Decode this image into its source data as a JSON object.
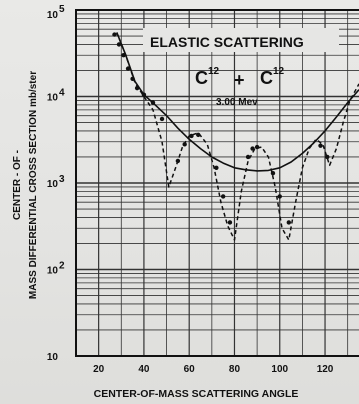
{
  "chart_data": {
    "type": "line",
    "title_lines": [
      "ELASTIC SCATTERING",
      "C",
      "12",
      "+",
      "C",
      "12",
      "3.00 Mev"
    ],
    "title": {
      "line1": "ELASTIC SCATTERING",
      "reaction_left": "C",
      "reaction_left_sup": "12",
      "reaction_plus": "+",
      "reaction_right": "C",
      "reaction_right_sup": "12",
      "energy": "3.00 Mev"
    },
    "xlabel": "CENTER-OF-MASS SCATTERING ANGLE",
    "ylabel_line1": "CENTER - OF -",
    "ylabel_line2": "MASS DIFFERENTIAL CROSS SECTION mb/ster",
    "x_ticks": [
      "20",
      "40",
      "60",
      "80",
      "100",
      "120"
    ],
    "y_ticks": [
      "10",
      "10",
      "10",
      "10",
      "10"
    ],
    "y_tick_exponents": [
      "5",
      "4",
      "3",
      "2",
      ""
    ],
    "y_scale": "log",
    "xlim": [
      10,
      135
    ],
    "ylim": [
      10,
      100000
    ],
    "grid": true,
    "series": [
      {
        "style": "solid",
        "x": [
          28,
          32,
          36,
          40,
          45,
          50,
          55,
          60,
          65,
          70,
          75,
          80,
          85,
          90,
          95,
          100,
          105,
          110,
          115,
          120,
          125,
          130,
          135
        ],
        "y": [
          55000,
          30000,
          15000,
          10500,
          8000,
          6000,
          4300,
          3200,
          2500,
          2000,
          1700,
          1500,
          1420,
          1380,
          1400,
          1500,
          1750,
          2200,
          2900,
          4000,
          5800,
          8500,
          12000
        ]
      },
      {
        "style": "dashed",
        "x": [
          28,
          32,
          36,
          40,
          44,
          48,
          51,
          54,
          57,
          60,
          64,
          68,
          71,
          74,
          77,
          80,
          83,
          86,
          89,
          92,
          95,
          98,
          101,
          104,
          107,
          110,
          113,
          116,
          119,
          122,
          125,
          128,
          131,
          135
        ],
        "y": [
          55000,
          30000,
          14500,
          10000,
          7000,
          3000,
          900,
          1500,
          2600,
          3500,
          3800,
          2800,
          1500,
          600,
          320,
          220,
          800,
          1800,
          2500,
          2600,
          2000,
          900,
          300,
          220,
          600,
          1500,
          2500,
          3200,
          2800,
          1600,
          2500,
          5000,
          9000,
          14000
        ]
      },
      {
        "style": "points",
        "x": [
          27,
          29,
          31,
          33,
          35,
          37,
          40,
          44,
          48,
          55,
          58,
          61,
          64,
          72,
          75,
          78,
          86,
          88,
          90,
          97,
          100,
          104,
          118,
          121
        ],
        "y": [
          52000,
          40000,
          30000,
          21000,
          16000,
          12500,
          10500,
          8500,
          5500,
          1800,
          2800,
          3500,
          3600,
          1500,
          700,
          350,
          2000,
          2500,
          2600,
          1300,
          700,
          350,
          2700,
          2000
        ]
      }
    ]
  }
}
